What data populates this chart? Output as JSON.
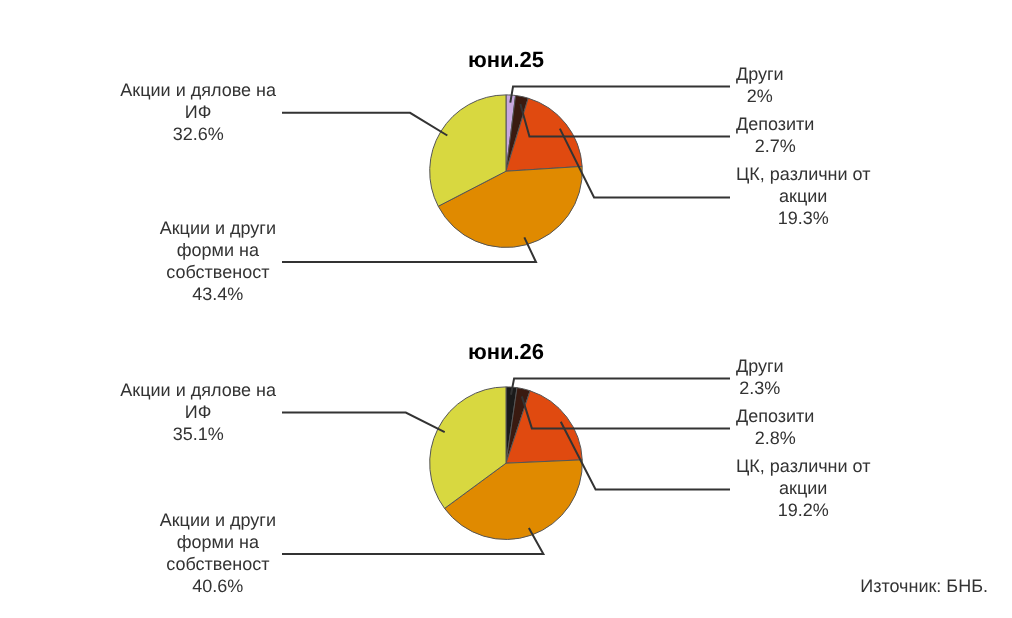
{
  "chart_data": [
    {
      "type": "pie",
      "title": "юни.25",
      "categories": [
        "Други",
        "Депозити",
        "ЦК, различни от акции",
        "Акции и други форми на собственост",
        "Акции и дялове на ИФ"
      ],
      "values": [
        2,
        2.7,
        19.3,
        43.4,
        32.6
      ],
      "value_labels": [
        "2%",
        "2.7%",
        "19.3%",
        "43.4%",
        "32.6%"
      ],
      "colors": [
        "#c8a8e0",
        "#3a1a10",
        "#e04a10",
        "#e08a00",
        "#d8d840"
      ],
      "legend": false
    },
    {
      "type": "pie",
      "title": "юни.26",
      "categories": [
        "Други",
        "Депозити",
        "ЦК, различни от акции",
        "Акции и други форми на собственост",
        "Акции и дялове на ИФ"
      ],
      "values": [
        2.3,
        2.8,
        19.2,
        40.6,
        35.1
      ],
      "value_labels": [
        "2.3%",
        "2.8%",
        "19.2%",
        "40.6%",
        "35.1%"
      ],
      "colors": [
        "#1a1a1a",
        "#3a1a10",
        "#e04a10",
        "#e08a00",
        "#d8d840"
      ],
      "legend": false,
      "annotations": [
        "Източник: БНБ."
      ]
    }
  ]
}
